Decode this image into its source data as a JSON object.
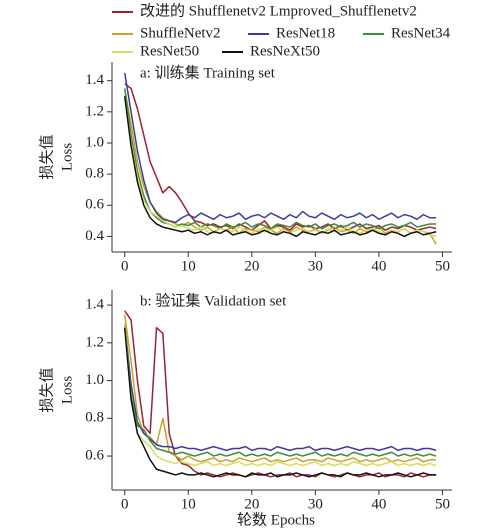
{
  "chart_data": [
    {
      "type": "line",
      "annotation": "a: 训练集 Training set",
      "ylabel": [
        "损失值",
        "Loss"
      ],
      "x": [
        0,
        1,
        2,
        3,
        4,
        5,
        6,
        7,
        8,
        9,
        10,
        11,
        12,
        13,
        14,
        15,
        16,
        17,
        18,
        19,
        20,
        21,
        22,
        23,
        24,
        25,
        26,
        27,
        28,
        29,
        30,
        31,
        32,
        33,
        34,
        35,
        36,
        37,
        38,
        39,
        40,
        41,
        42,
        43,
        44,
        45,
        46,
        47,
        48,
        49
      ],
      "xlim": [
        -2,
        51.5
      ],
      "ylim": [
        0.3,
        1.52
      ],
      "xticks": [
        0,
        10,
        20,
        30,
        40,
        50
      ],
      "yticks": [
        0.4,
        0.6,
        0.8,
        {
          "value": 1,
          "label": "1.0"
        },
        1.2,
        1.4
      ],
      "series": [
        {
          "name": "改进的 Shufflenetv2 Lmproved_Shufflenetv2",
          "color": "#9b2335",
          "values": [
            1.38,
            1.35,
            1.22,
            1.05,
            0.88,
            0.78,
            0.68,
            0.72,
            0.68,
            0.62,
            0.55,
            0.5,
            0.49,
            0.47,
            0.48,
            0.46,
            0.47,
            0.45,
            0.48,
            0.46,
            0.44,
            0.47,
            0.5,
            0.45,
            0.47,
            0.46,
            0.44,
            0.48,
            0.46,
            0.47,
            0.45,
            0.46,
            0.48,
            0.45,
            0.47,
            0.44,
            0.46,
            0.48,
            0.45,
            0.46,
            0.47,
            0.44,
            0.46,
            0.45,
            0.47,
            0.46,
            0.44,
            0.45,
            0.46,
            0.45
          ]
        },
        {
          "name": "ShuffleNetv2",
          "color": "#c9a227",
          "values": [
            1.35,
            1.12,
            0.88,
            0.72,
            0.62,
            0.56,
            0.52,
            0.5,
            0.48,
            0.47,
            0.49,
            0.46,
            0.44,
            0.46,
            0.43,
            0.45,
            0.44,
            0.46,
            0.42,
            0.45,
            0.44,
            0.43,
            0.46,
            0.44,
            0.42,
            0.45,
            0.43,
            0.46,
            0.44,
            0.43,
            0.45,
            0.42,
            0.44,
            0.46,
            0.43,
            0.44,
            0.42,
            0.45,
            0.43,
            0.44,
            0.46,
            0.42,
            0.44,
            0.43,
            0.45,
            0.42,
            0.44,
            0.43,
            0.42,
            0.35
          ]
        },
        {
          "name": "ResNet18",
          "color": "#3c3c9c",
          "values": [
            1.45,
            1.2,
            0.95,
            0.76,
            0.62,
            0.55,
            0.51,
            0.5,
            0.49,
            0.52,
            0.54,
            0.52,
            0.55,
            0.53,
            0.51,
            0.54,
            0.52,
            0.53,
            0.55,
            0.51,
            0.53,
            0.54,
            0.52,
            0.55,
            0.53,
            0.51,
            0.54,
            0.52,
            0.56,
            0.53,
            0.52,
            0.55,
            0.53,
            0.51,
            0.54,
            0.52,
            0.53,
            0.55,
            0.52,
            0.54,
            0.51,
            0.53,
            0.55,
            0.52,
            0.54,
            0.53,
            0.51,
            0.54,
            0.52,
            0.52
          ]
        },
        {
          "name": "ResNet34",
          "color": "#3d8b3d",
          "values": [
            1.35,
            1.05,
            0.82,
            0.66,
            0.56,
            0.52,
            0.49,
            0.48,
            0.46,
            0.48,
            0.47,
            0.49,
            0.46,
            0.48,
            0.47,
            0.45,
            0.48,
            0.46,
            0.47,
            0.49,
            0.46,
            0.48,
            0.47,
            0.45,
            0.48,
            0.47,
            0.46,
            0.49,
            0.47,
            0.46,
            0.48,
            0.45,
            0.47,
            0.48,
            0.46,
            0.47,
            0.49,
            0.46,
            0.48,
            0.47,
            0.45,
            0.47,
            0.48,
            0.46,
            0.47,
            0.49,
            0.46,
            0.47,
            0.48,
            0.48
          ]
        },
        {
          "name": "ResNet50",
          "color": "#cfdf5a",
          "values": [
            1.3,
            1.0,
            0.78,
            0.63,
            0.56,
            0.53,
            0.5,
            0.48,
            0.46,
            0.47,
            0.45,
            0.44,
            0.46,
            0.43,
            0.42,
            0.45,
            0.44,
            0.43,
            0.46,
            0.44,
            0.42,
            0.45,
            0.43,
            0.44,
            0.46,
            0.43,
            0.42,
            0.44,
            0.45,
            0.43,
            0.44,
            0.42,
            0.45,
            0.43,
            0.44,
            0.46,
            0.43,
            0.42,
            0.44,
            0.45,
            0.43,
            0.41,
            0.44,
            0.43,
            0.45,
            0.42,
            0.44,
            0.43,
            0.41,
            0.4
          ]
        },
        {
          "name": "ResNeXt50",
          "color": "#111111",
          "values": [
            1.3,
            0.98,
            0.75,
            0.6,
            0.52,
            0.48,
            0.46,
            0.45,
            0.44,
            0.43,
            0.44,
            0.42,
            0.43,
            0.41,
            0.43,
            0.42,
            0.44,
            0.41,
            0.42,
            0.43,
            0.41,
            0.42,
            0.44,
            0.42,
            0.41,
            0.43,
            0.42,
            0.4,
            0.43,
            0.42,
            0.41,
            0.43,
            0.42,
            0.44,
            0.41,
            0.42,
            0.43,
            0.41,
            0.42,
            0.44,
            0.42,
            0.41,
            0.43,
            0.42,
            0.4,
            0.42,
            0.43,
            0.41,
            0.42,
            0.43
          ]
        }
      ]
    },
    {
      "type": "line",
      "annotation": "b: 验证集 Validation set",
      "ylabel": [
        "损失值",
        "Loss"
      ],
      "xlabel": "轮数 Epochs",
      "x": [
        0,
        1,
        2,
        3,
        4,
        5,
        6,
        7,
        8,
        9,
        10,
        11,
        12,
        13,
        14,
        15,
        16,
        17,
        18,
        19,
        20,
        21,
        22,
        23,
        24,
        25,
        26,
        27,
        28,
        29,
        30,
        31,
        32,
        33,
        34,
        35,
        36,
        37,
        38,
        39,
        40,
        41,
        42,
        43,
        44,
        45,
        46,
        47,
        48,
        49
      ],
      "xlim": [
        -2,
        51.5
      ],
      "ylim": [
        0.42,
        1.48
      ],
      "xticks": [
        0,
        10,
        20,
        30,
        40,
        50
      ],
      "yticks": [
        0.6,
        0.8,
        {
          "value": 1,
          "label": "1.0"
        },
        1.2,
        1.4
      ],
      "series": [
        {
          "color": "#9b2335",
          "values": [
            1.37,
            1.32,
            1.0,
            0.76,
            0.72,
            1.28,
            1.25,
            0.72,
            0.6,
            0.56,
            0.55,
            0.52,
            0.5,
            0.51,
            0.5,
            0.49,
            0.5,
            0.51,
            0.5,
            0.49,
            0.5,
            0.51,
            0.5,
            0.49,
            0.5,
            0.5,
            0.51,
            0.49,
            0.5,
            0.5,
            0.49,
            0.51,
            0.5,
            0.49,
            0.5,
            0.51,
            0.5,
            0.49,
            0.5,
            0.5,
            0.51,
            0.49,
            0.5,
            0.5,
            0.49,
            0.51,
            0.5,
            0.49,
            0.5,
            0.5
          ]
        },
        {
          "color": "#c9a227",
          "values": [
            1.35,
            1.1,
            0.82,
            0.72,
            0.7,
            0.66,
            0.8,
            0.62,
            0.6,
            0.58,
            0.6,
            0.58,
            0.57,
            0.58,
            0.59,
            0.57,
            0.58,
            0.57,
            0.59,
            0.58,
            0.57,
            0.58,
            0.59,
            0.57,
            0.58,
            0.57,
            0.58,
            0.59,
            0.57,
            0.58,
            0.58,
            0.57,
            0.59,
            0.58,
            0.57,
            0.58,
            0.59,
            0.57,
            0.58,
            0.57,
            0.58,
            0.59,
            0.57,
            0.58,
            0.57,
            0.58,
            0.59,
            0.57,
            0.58,
            0.58
          ]
        },
        {
          "color": "#3c3c9c",
          "values": [
            1.3,
            0.98,
            0.78,
            0.72,
            0.69,
            0.66,
            0.65,
            0.65,
            0.64,
            0.65,
            0.64,
            0.64,
            0.63,
            0.64,
            0.65,
            0.64,
            0.63,
            0.64,
            0.64,
            0.65,
            0.63,
            0.64,
            0.64,
            0.63,
            0.65,
            0.64,
            0.63,
            0.64,
            0.64,
            0.65,
            0.63,
            0.64,
            0.64,
            0.63,
            0.64,
            0.65,
            0.64,
            0.63,
            0.64,
            0.64,
            0.63,
            0.64,
            0.65,
            0.63,
            0.64,
            0.64,
            0.63,
            0.64,
            0.64,
            0.63
          ]
        },
        {
          "color": "#3d8b3d",
          "values": [
            1.3,
            0.92,
            0.76,
            0.74,
            0.68,
            0.64,
            0.63,
            0.62,
            0.61,
            0.62,
            0.61,
            0.6,
            0.61,
            0.62,
            0.6,
            0.61,
            0.6,
            0.61,
            0.62,
            0.6,
            0.61,
            0.6,
            0.61,
            0.6,
            0.62,
            0.61,
            0.6,
            0.61,
            0.6,
            0.61,
            0.62,
            0.6,
            0.61,
            0.6,
            0.61,
            0.6,
            0.62,
            0.61,
            0.6,
            0.61,
            0.6,
            0.61,
            0.62,
            0.6,
            0.61,
            0.6,
            0.61,
            0.6,
            0.61,
            0.6
          ]
        },
        {
          "color": "#cfdf5a",
          "values": [
            1.3,
            0.9,
            0.72,
            0.68,
            0.65,
            0.6,
            0.58,
            0.57,
            0.56,
            0.57,
            0.56,
            0.55,
            0.56,
            0.57,
            0.55,
            0.56,
            0.55,
            0.56,
            0.57,
            0.55,
            0.56,
            0.55,
            0.56,
            0.55,
            0.57,
            0.56,
            0.55,
            0.56,
            0.55,
            0.56,
            0.57,
            0.55,
            0.56,
            0.55,
            0.56,
            0.55,
            0.57,
            0.56,
            0.55,
            0.56,
            0.55,
            0.56,
            0.57,
            0.55,
            0.56,
            0.55,
            0.56,
            0.55,
            0.56,
            0.55
          ]
        },
        {
          "color": "#111111",
          "values": [
            1.28,
            0.9,
            0.72,
            0.65,
            0.58,
            0.53,
            0.52,
            0.51,
            0.5,
            0.51,
            0.5,
            0.5,
            0.51,
            0.5,
            0.49,
            0.5,
            0.51,
            0.5,
            0.5,
            0.49,
            0.51,
            0.5,
            0.5,
            0.51,
            0.49,
            0.5,
            0.5,
            0.51,
            0.5,
            0.49,
            0.5,
            0.51,
            0.5,
            0.5,
            0.49,
            0.51,
            0.5,
            0.5,
            0.51,
            0.5,
            0.49,
            0.5,
            0.5,
            0.51,
            0.5,
            0.49,
            0.5,
            0.51,
            0.5,
            0.5
          ]
        }
      ]
    }
  ]
}
